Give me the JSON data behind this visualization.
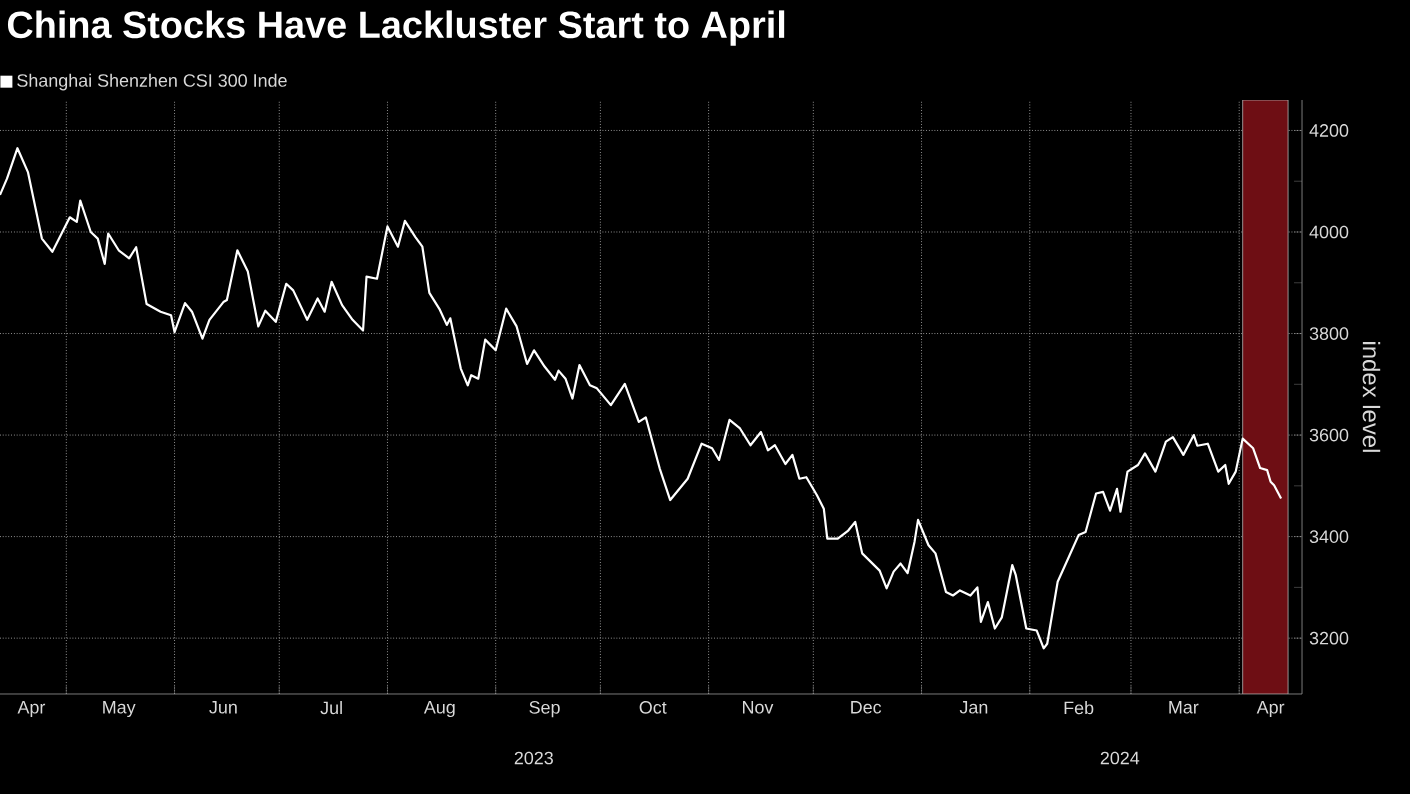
{
  "chart_data": {
    "type": "line",
    "title": "China Stocks Have Lackluster Start to April",
    "ylabel": "index level",
    "x": [
      "2023-04-12",
      "2023-04-14",
      "2023-04-17",
      "2023-04-20",
      "2023-04-24",
      "2023-04-27",
      "2023-05-02",
      "2023-05-04",
      "2023-05-05",
      "2023-05-08",
      "2023-05-10",
      "2023-05-12",
      "2023-05-13",
      "2023-05-16",
      "2023-05-19",
      "2023-05-21",
      "2023-05-24",
      "2023-05-28",
      "2023-05-31",
      "2023-06-01",
      "2023-06-04",
      "2023-06-06",
      "2023-06-09",
      "2023-06-11",
      "2023-06-15",
      "2023-06-16",
      "2023-06-19",
      "2023-06-22",
      "2023-06-25",
      "2023-06-27",
      "2023-06-30",
      "2023-07-03",
      "2023-07-05",
      "2023-07-09",
      "2023-07-12",
      "2023-07-14",
      "2023-07-16",
      "2023-07-19",
      "2023-07-22",
      "2023-07-25",
      "2023-07-26",
      "2023-07-29",
      "2023-08-01",
      "2023-08-04",
      "2023-08-06",
      "2023-08-09",
      "2023-08-11",
      "2023-08-13",
      "2023-08-16",
      "2023-08-18",
      "2023-08-19",
      "2023-08-22",
      "2023-08-24",
      "2023-08-25",
      "2023-08-27",
      "2023-08-29",
      "2023-09-01",
      "2023-09-04",
      "2023-09-07",
      "2023-09-10",
      "2023-09-12",
      "2023-09-15",
      "2023-09-18",
      "2023-09-19",
      "2023-09-21",
      "2023-09-23",
      "2023-09-25",
      "2023-09-28",
      "2023-09-30",
      "2023-10-04",
      "2023-10-08",
      "2023-10-12",
      "2023-10-14",
      "2023-10-18",
      "2023-10-21",
      "2023-10-26",
      "2023-10-30",
      "2023-11-02",
      "2023-11-04",
      "2023-11-07",
      "2023-11-10",
      "2023-11-13",
      "2023-11-16",
      "2023-11-18",
      "2023-11-20",
      "2023-11-23",
      "2023-11-25",
      "2023-11-27",
      "2023-11-29",
      "2023-12-02",
      "2023-12-04",
      "2023-12-05",
      "2023-12-08",
      "2023-12-11",
      "2023-12-13",
      "2023-12-15",
      "2023-12-20",
      "2023-12-22",
      "2023-12-24",
      "2023-12-26",
      "2023-12-28",
      "2023-12-30",
      "2023-12-31",
      "2024-01-03",
      "2024-01-05",
      "2024-01-08",
      "2024-01-10",
      "2024-01-12",
      "2024-01-15",
      "2024-01-17",
      "2024-01-18",
      "2024-01-20",
      "2024-01-22",
      "2024-01-24",
      "2024-01-27",
      "2024-01-28",
      "2024-01-31",
      "2024-02-03",
      "2024-02-05",
      "2024-02-06",
      "2024-02-09",
      "2024-02-12",
      "2024-02-15",
      "2024-02-17",
      "2024-02-20",
      "2024-02-22",
      "2024-02-24",
      "2024-02-26",
      "2024-02-27",
      "2024-02-29",
      "2024-03-03",
      "2024-03-05",
      "2024-03-08",
      "2024-03-11",
      "2024-03-13",
      "2024-03-16",
      "2024-03-19",
      "2024-03-20",
      "2024-03-23",
      "2024-03-26",
      "2024-03-28",
      "2024-03-29",
      "2024-03-31",
      "2024-04-02",
      "2024-04-05",
      "2024-04-07",
      "2024-04-09",
      "2024-04-10",
      "2024-04-11",
      "2024-04-13"
    ],
    "series": [
      {
        "name": "Shanghai Shenzhen CSI 300 Inde",
        "color": "#ffffff",
        "values": [
          4073,
          4105,
          4165,
          4118,
          3987,
          3961,
          4029,
          4020,
          4062,
          4000,
          3987,
          3937,
          3997,
          3964,
          3948,
          3970,
          3858,
          3843,
          3836,
          3803,
          3860,
          3843,
          3790,
          3827,
          3862,
          3866,
          3964,
          3922,
          3814,
          3845,
          3823,
          3898,
          3885,
          3827,
          3869,
          3843,
          3902,
          3856,
          3827,
          3806,
          3912,
          3908,
          4011,
          3971,
          4022,
          3990,
          3971,
          3880,
          3847,
          3817,
          3830,
          3731,
          3698,
          3718,
          3711,
          3788,
          3767,
          3849,
          3814,
          3740,
          3767,
          3735,
          3709,
          3727,
          3711,
          3672,
          3738,
          3698,
          3692,
          3659,
          3701,
          3626,
          3635,
          3534,
          3472,
          3514,
          3583,
          3574,
          3551,
          3630,
          3613,
          3580,
          3606,
          3570,
          3580,
          3543,
          3561,
          3514,
          3517,
          3482,
          3455,
          3396,
          3396,
          3412,
          3429,
          3367,
          3333,
          3298,
          3331,
          3347,
          3328,
          3390,
          3433,
          3383,
          3367,
          3291,
          3284,
          3294,
          3284,
          3300,
          3232,
          3271,
          3219,
          3241,
          3344,
          3324,
          3219,
          3215,
          3180,
          3189,
          3311,
          3357,
          3403,
          3409,
          3485,
          3488,
          3451,
          3494,
          3449,
          3528,
          3541,
          3564,
          3528,
          3587,
          3596,
          3561,
          3600,
          3579,
          3583,
          3528,
          3541,
          3504,
          3528,
          3593,
          3574,
          3535,
          3531,
          3508,
          3501,
          3475
        ]
      }
    ],
    "xlim": [
      "2023-04-12",
      "2024-04-19"
    ],
    "xticks": [
      {
        "value": "2023-04-21",
        "label": "Apr"
      },
      {
        "value": "2023-05-01",
        "label": null
      },
      {
        "value": "2023-05-16",
        "label": "May"
      },
      {
        "value": "2023-06-01",
        "label": null
      },
      {
        "value": "2023-06-15",
        "label": "Jun"
      },
      {
        "value": "2023-07-01",
        "label": null
      },
      {
        "value": "2023-07-16",
        "label": "Jul"
      },
      {
        "value": "2023-08-01",
        "label": null
      },
      {
        "value": "2023-08-16",
        "label": "Aug"
      },
      {
        "value": "2023-09-01",
        "label": null
      },
      {
        "value": "2023-09-15",
        "label": "Sep"
      },
      {
        "value": "2023-10-01",
        "label": null
      },
      {
        "value": "2023-10-16",
        "label": "Oct"
      },
      {
        "value": "2023-11-01",
        "label": null
      },
      {
        "value": "2023-11-15",
        "label": "Nov"
      },
      {
        "value": "2023-12-01",
        "label": null
      },
      {
        "value": "2023-12-16",
        "label": "Dec"
      },
      {
        "value": "2024-01-01",
        "label": null
      },
      {
        "value": "2024-01-16",
        "label": "Jan"
      },
      {
        "value": "2024-02-01",
        "label": null
      },
      {
        "value": "2024-02-15",
        "label": "Feb"
      },
      {
        "value": "2024-03-01",
        "label": null
      },
      {
        "value": "2024-03-16",
        "label": "Mar"
      },
      {
        "value": "2024-04-01",
        "label": null
      },
      {
        "value": "2024-04-10",
        "label": "Apr"
      }
    ],
    "ylim": [
      3090,
      4260
    ],
    "yticks": [
      3200,
      {
        "value": 3300,
        "label": null
      },
      3400,
      {
        "value": 3500,
        "label": null
      },
      3600,
      {
        "value": 3700,
        "label": null
      },
      3800,
      {
        "value": 3900,
        "label": null
      },
      4000,
      {
        "value": 4100,
        "label": null
      },
      4200
    ],
    "grid": true,
    "legend": "top left",
    "bands": [
      {
        "axis": "x",
        "from": "2024-04-02",
        "to": "2024-04-15",
        "color": "#6e0e14"
      }
    ],
    "annotations": [
      "2023",
      "2024"
    ]
  }
}
